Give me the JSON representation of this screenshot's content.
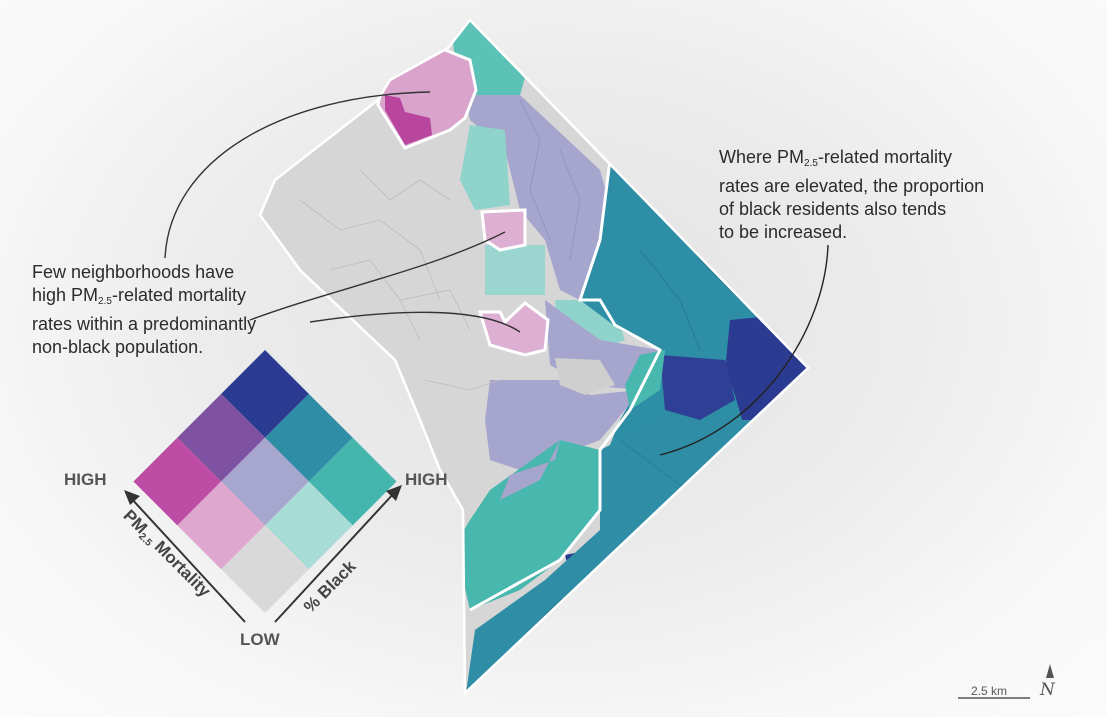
{
  "annotations": {
    "left": {
      "line1": "Few neighborhoods have",
      "line2_pre": "high PM",
      "line2_sub": "2.5",
      "line2_post": "-related mortality",
      "line3": "rates within a predominantly",
      "line4": "non-black population."
    },
    "right": {
      "line1_pre": "Where PM",
      "line1_sub": "2.5",
      "line1_post": "-related mortality",
      "line2": "rates are elevated, the proportion",
      "line3": "of black residents also tends",
      "line4": "to be increased."
    }
  },
  "legend": {
    "high_left": "HIGH",
    "high_right": "HIGH",
    "low": "LOW",
    "pm_axis_pre": "PM",
    "pm_axis_sub": "2.5",
    "pm_axis_post": " Mortality",
    "black_axis": "% Black",
    "colors": {
      "pm_low_black_low": "#d9d9d9",
      "pm_low_black_mid": "#a8dcd6",
      "pm_low_black_high": "#45b6ad",
      "pm_mid_black_low": "#dda7cf",
      "pm_mid_black_mid": "#a7a6cf",
      "pm_mid_black_high": "#2f8ea6",
      "pm_high_black_low": "#bd4ca4",
      "pm_high_black_mid": "#7f52a1",
      "pm_high_black_high": "#2b3b91"
    }
  },
  "scale_bar": {
    "label": "2.5 km"
  },
  "north_arrow": {
    "letter": "N"
  }
}
